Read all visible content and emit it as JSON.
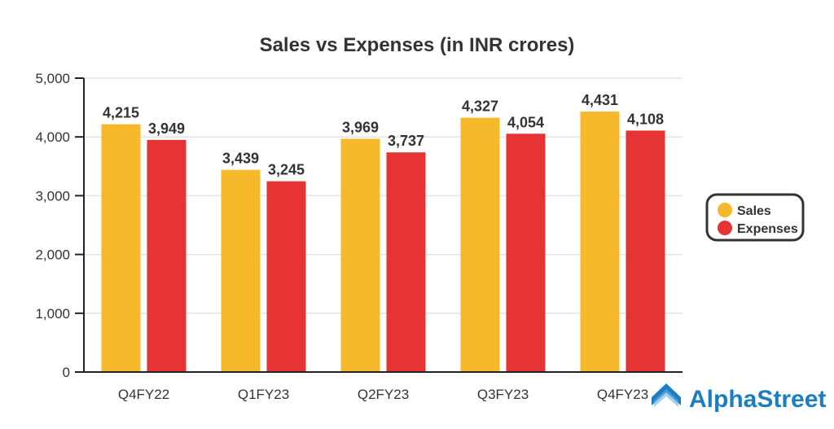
{
  "chart_data": {
    "type": "bar",
    "title": "Sales vs Expenses (in INR crores)",
    "xlabel": "",
    "ylabel": "",
    "ylim": [
      0,
      5000
    ],
    "yticks": [
      0,
      1000,
      2000,
      3000,
      4000,
      5000
    ],
    "ytick_labels": [
      "0",
      "1,000",
      "2,000",
      "3,000",
      "4,000",
      "5,000"
    ],
    "grid": true,
    "legend_position": "right",
    "categories": [
      "Q4FY22",
      "Q1FY23",
      "Q2FY23",
      "Q3FY23",
      "Q4FY23"
    ],
    "series": [
      {
        "name": "Sales",
        "color": "#F6B92B",
        "values": [
          4215,
          3439,
          3969,
          4327,
          4431
        ],
        "labels": [
          "4,215",
          "3,439",
          "3,969",
          "4,327",
          "4,431"
        ]
      },
      {
        "name": "Expenses",
        "color": "#E63434",
        "values": [
          3949,
          3245,
          3737,
          4054,
          4108
        ],
        "labels": [
          "3,949",
          "3,245",
          "3,737",
          "4,054",
          "4,108"
        ]
      }
    ]
  },
  "branding": {
    "logo_text": "AlphaStreet",
    "color": "#1B7EC2"
  }
}
